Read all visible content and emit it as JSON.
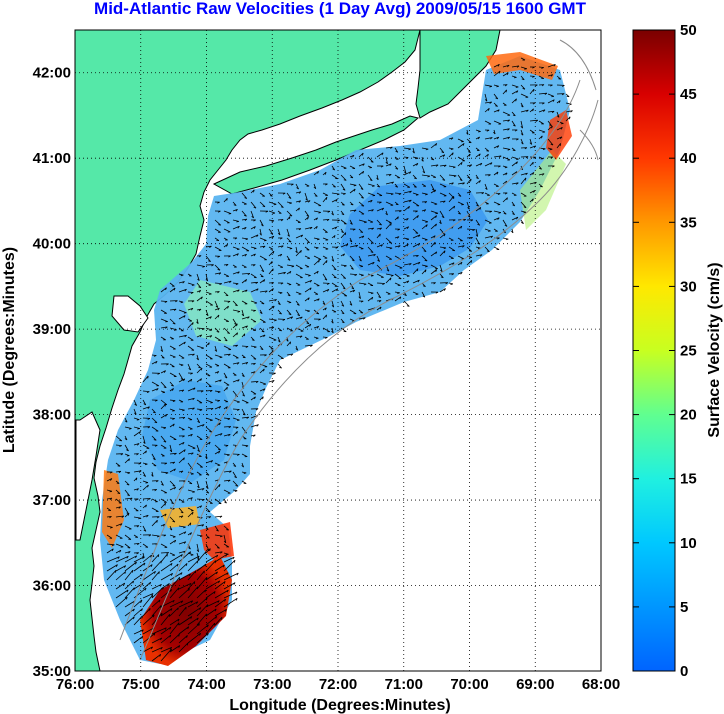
{
  "title": "Mid-Atlantic Raw Velocities (1 Day Avg) 2009/05/15 1600 GMT",
  "map": {
    "xlabel": "Longitude (Degrees:Minutes)",
    "ylabel": "Latitude (Degrees:Minutes)",
    "lon_range": [
      -76,
      -68
    ],
    "lat_range": [
      35,
      42.5
    ],
    "lon_ticks": [
      {
        "value": -76,
        "label": "76:00"
      },
      {
        "value": -75,
        "label": "75:00"
      },
      {
        "value": -74,
        "label": "74:00"
      },
      {
        "value": -73,
        "label": "73:00"
      },
      {
        "value": -72,
        "label": "72:00"
      },
      {
        "value": -71,
        "label": "71:00"
      },
      {
        "value": -70,
        "label": "70:00"
      },
      {
        "value": -69,
        "label": "69:00"
      },
      {
        "value": -68,
        "label": "68:00"
      }
    ],
    "lat_ticks": [
      {
        "value": 35,
        "label": "35:00"
      },
      {
        "value": 36,
        "label": "36:00"
      },
      {
        "value": 37,
        "label": "37:00"
      },
      {
        "value": 38,
        "label": "38:00"
      },
      {
        "value": 39,
        "label": "39:00"
      },
      {
        "value": 40,
        "label": "40:00"
      },
      {
        "value": 41,
        "label": "41:00"
      },
      {
        "value": 42,
        "label": "42:00"
      }
    ],
    "grid": "dotted",
    "land_color": "#55e8a8",
    "coast_color": "#000000",
    "isobath_color": "#8c8c8c"
  },
  "colorbar": {
    "label": "Surface Velocity (cm/s)",
    "min": 0,
    "max": 50,
    "ticks": [
      {
        "value": 0,
        "label": "0"
      },
      {
        "value": 5,
        "label": "5"
      },
      {
        "value": 10,
        "label": "10"
      },
      {
        "value": 15,
        "label": "15"
      },
      {
        "value": 20,
        "label": "20"
      },
      {
        "value": 25,
        "label": "25"
      },
      {
        "value": 30,
        "label": "30"
      },
      {
        "value": 35,
        "label": "35"
      },
      {
        "value": 40,
        "label": "40"
      },
      {
        "value": 45,
        "label": "45"
      },
      {
        "value": 50,
        "label": "50"
      }
    ],
    "colormap": "jet"
  }
}
